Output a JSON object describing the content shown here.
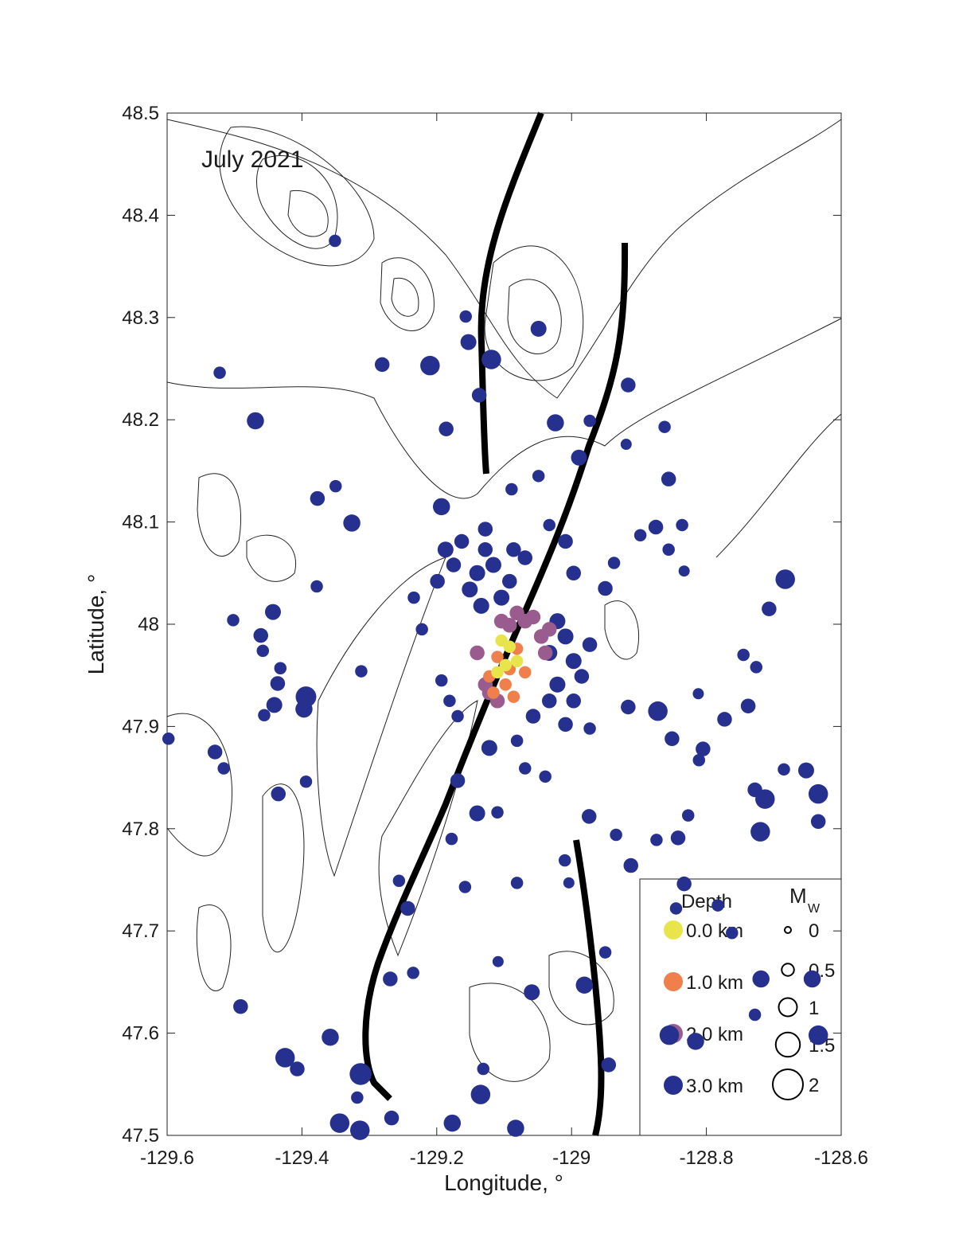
{
  "chart_data": {
    "type": "scatter",
    "title": "July 2021",
    "x_label": "Longitude, °",
    "y_label": "Latitude, °",
    "xlim": [
      -129.6,
      -128.6
    ],
    "ylim": [
      47.5,
      48.5
    ],
    "xticks": [
      -129.6,
      -129.4,
      -129.2,
      -129,
      -128.8,
      -128.6
    ],
    "yticks": [
      47.5,
      47.6,
      47.7,
      47.8,
      47.9,
      48,
      48.1,
      48.2,
      48.3,
      48.4,
      48.5
    ],
    "legend_title": "Depth",
    "size_legend": {
      "title": "M",
      "title_sub": "W",
      "values": [
        0,
        0.5,
        1,
        1.5,
        2
      ]
    },
    "series": [
      {
        "name": "0.0 km",
        "color": "#e8e44c",
        "x": [
          -129.104,
          -129.092,
          -129.11,
          -129.081,
          -129.098
        ],
        "values": [
          47.984,
          47.978,
          47.953,
          47.964,
          47.96
        ],
        "sizes": [
          0.5,
          0.5,
          0.5,
          0.5,
          0.5
        ]
      },
      {
        "name": "1.0 km",
        "color": "#f0804b",
        "x": [
          -129.11,
          -129.092,
          -129.122,
          -129.098,
          -129.081,
          -129.116,
          -129.086,
          -129.069
        ],
        "values": [
          47.968,
          47.956,
          47.949,
          47.941,
          47.976,
          47.933,
          47.929,
          47.953
        ],
        "sizes": [
          0.5,
          0.5,
          0.5,
          0.5,
          0.5,
          0.5,
          0.5,
          0.5
        ]
      },
      {
        "name": "2.0 km",
        "color": "#9a5c8e",
        "x": [
          -129.104,
          -129.081,
          -129.057,
          -129.033,
          -129.045,
          -129.122,
          -129.11,
          -129.128,
          -129.069,
          -129.092,
          -129.039,
          -129.14
        ],
        "values": [
          48.003,
          48.011,
          48.007,
          47.995,
          47.988,
          47.933,
          47.925,
          47.941,
          48.003,
          47.999,
          47.972,
          47.972
        ],
        "sizes": [
          0.7,
          0.7,
          0.7,
          0.7,
          0.7,
          0.7,
          0.7,
          0.7,
          0.7,
          0.7,
          0.7,
          0.7
        ]
      },
      {
        "name": "3.0 km",
        "color": "#26318f",
        "x": [
          -129.351,
          -129.157,
          -129.049,
          -129.119,
          -129.153,
          -129.281,
          -129.21,
          -129.522,
          -129.469,
          -129.137,
          -128.916,
          -129.024,
          -128.973,
          -129.186,
          -128.862,
          -128.989,
          -128.919,
          -128.856,
          -129.089,
          -129.049,
          -129.193,
          -129.35,
          -129.377,
          -129.326,
          -128.875,
          -128.898,
          -128.836,
          -128.683,
          -128.707,
          -128.856,
          -128.833,
          -128.937,
          -128.95,
          -129.502,
          -129.443,
          -129.461,
          -129.458,
          -129.378,
          -129.432,
          -129.436,
          -129.394,
          -129.441,
          -129.456,
          -129.397,
          -129.312,
          -129.193,
          -129.598,
          -129.529,
          -129.516,
          -129.491,
          -129.435,
          -129.394,
          -129.358,
          -129.425,
          -129.407,
          -129.313,
          -129.344,
          -129.314,
          -129.318,
          -129.267,
          -129.177,
          -129.135,
          -129.083,
          -129.131,
          -129.256,
          -129.243,
          -129.269,
          -129.235,
          -129.059,
          -129.109,
          -128.981,
          -128.95,
          -128.945,
          -129.081,
          -129.158,
          -129.178,
          -129.01,
          -129.004,
          -128.974,
          -128.934,
          -128.912,
          -128.874,
          -128.842,
          -128.827,
          -128.72,
          -128.634,
          -128.634,
          -128.713,
          -128.728,
          -128.652,
          -128.685,
          -128.738,
          -128.773,
          -128.812,
          -128.745,
          -128.726,
          -128.872,
          -128.916,
          -128.851,
          -128.805,
          -128.811,
          -128.719,
          -128.728,
          -128.634,
          -128.643,
          -128.845,
          -128.855,
          -128.816,
          -128.833,
          -128.783,
          -128.762,
          -129.14,
          -129.116,
          -129.151,
          -129.104,
          -129.134,
          -129.175,
          -129.199,
          -129.092,
          -129.069,
          -129.086,
          -129.128,
          -129.163,
          -129.234,
          -129.222,
          -129.021,
          -129.009,
          -129.033,
          -128.997,
          -129.021,
          -129.033,
          -128.997,
          -128.973,
          -128.985,
          -129.057,
          -129.009,
          -128.973,
          -129.081,
          -129.122,
          -129.069,
          -129.039,
          -129.14,
          -129.11,
          -129.169,
          -129.181,
          -129.169,
          -128.997,
          -129.009,
          -129.033,
          -129.128,
          -129.187
        ],
        "values": [
          48.375,
          48.301,
          48.289,
          48.259,
          48.276,
          48.254,
          48.253,
          48.246,
          48.199,
          48.224,
          48.234,
          48.197,
          48.199,
          48.191,
          48.193,
          48.163,
          48.176,
          48.142,
          48.132,
          48.145,
          48.115,
          48.135,
          48.123,
          48.099,
          48.095,
          48.087,
          48.097,
          48.044,
          48.015,
          48.073,
          48.052,
          48.06,
          48.035,
          48.004,
          48.012,
          47.989,
          47.974,
          48.037,
          47.957,
          47.942,
          47.929,
          47.921,
          47.911,
          47.917,
          47.954,
          47.945,
          47.888,
          47.875,
          47.859,
          47.626,
          47.834,
          47.846,
          47.596,
          47.576,
          47.565,
          47.56,
          47.512,
          47.505,
          47.537,
          47.517,
          47.512,
          47.54,
          47.507,
          47.565,
          47.749,
          47.722,
          47.653,
          47.659,
          47.64,
          47.67,
          47.647,
          47.679,
          47.569,
          47.747,
          47.743,
          47.79,
          47.769,
          47.747,
          47.812,
          47.794,
          47.764,
          47.789,
          47.791,
          47.813,
          47.797,
          47.807,
          47.834,
          47.829,
          47.838,
          47.857,
          47.858,
          47.92,
          47.907,
          47.932,
          47.97,
          47.958,
          47.915,
          47.919,
          47.888,
          47.878,
          47.867,
          47.653,
          47.618,
          47.598,
          47.653,
          47.722,
          47.598,
          47.592,
          47.746,
          47.725,
          47.698,
          48.05,
          48.058,
          48.034,
          48.026,
          48.018,
          48.058,
          48.042,
          48.042,
          48.065,
          48.073,
          48.073,
          48.081,
          48.026,
          47.995,
          48.003,
          47.988,
          47.972,
          47.964,
          47.941,
          47.925,
          47.925,
          47.98,
          47.949,
          47.91,
          47.902,
          47.898,
          47.886,
          47.879,
          47.859,
          47.851,
          47.815,
          47.816,
          47.847,
          47.925,
          47.91,
          48.05,
          48.081,
          48.097,
          48.093,
          48.073
        ],
        "sizes": [
          0.5,
          0.5,
          0.8,
          1.1,
          0.8,
          0.7,
          1.1,
          0.5,
          0.9,
          0.7,
          0.7,
          0.9,
          0.5,
          0.7,
          0.5,
          0.8,
          0.4,
          0.7,
          0.5,
          0.5,
          0.9,
          0.5,
          0.7,
          0.9,
          0.7,
          0.5,
          0.5,
          1.1,
          0.7,
          0.5,
          0.4,
          0.5,
          0.7,
          0.5,
          0.8,
          0.7,
          0.5,
          0.5,
          0.5,
          0.7,
          1.2,
          0.8,
          0.5,
          0.9,
          0.5,
          0.5,
          0.5,
          0.7,
          0.5,
          0.7,
          0.7,
          0.5,
          0.9,
          1.1,
          0.7,
          1.3,
          1.1,
          1.1,
          0.5,
          0.7,
          0.9,
          1.1,
          0.9,
          0.5,
          0.5,
          0.7,
          0.7,
          0.5,
          0.8,
          0.4,
          0.9,
          0.5,
          0.7,
          0.5,
          0.5,
          0.5,
          0.5,
          0.4,
          0.7,
          0.5,
          0.7,
          0.5,
          0.7,
          0.5,
          1.1,
          0.7,
          1.1,
          1.1,
          0.7,
          0.8,
          0.5,
          0.7,
          0.7,
          0.4,
          0.5,
          0.5,
          1.1,
          0.7,
          0.7,
          0.7,
          0.5,
          0.9,
          0.5,
          1.1,
          0.9,
          0.5,
          1.1,
          0.9,
          0.7,
          0.5,
          0.5,
          0.8,
          0.8,
          0.8,
          0.8,
          0.8,
          0.7,
          0.7,
          0.7,
          0.7,
          0.7,
          0.7,
          0.7,
          0.5,
          0.5,
          0.8,
          0.8,
          0.8,
          0.8,
          0.8,
          0.7,
          0.7,
          0.7,
          0.7,
          0.7,
          0.7,
          0.5,
          0.5,
          0.8,
          0.5,
          0.5,
          0.8,
          0.5,
          0.7,
          0.5,
          0.5,
          0.7,
          0.7,
          0.5,
          0.7,
          0.8
        ]
      }
    ]
  }
}
